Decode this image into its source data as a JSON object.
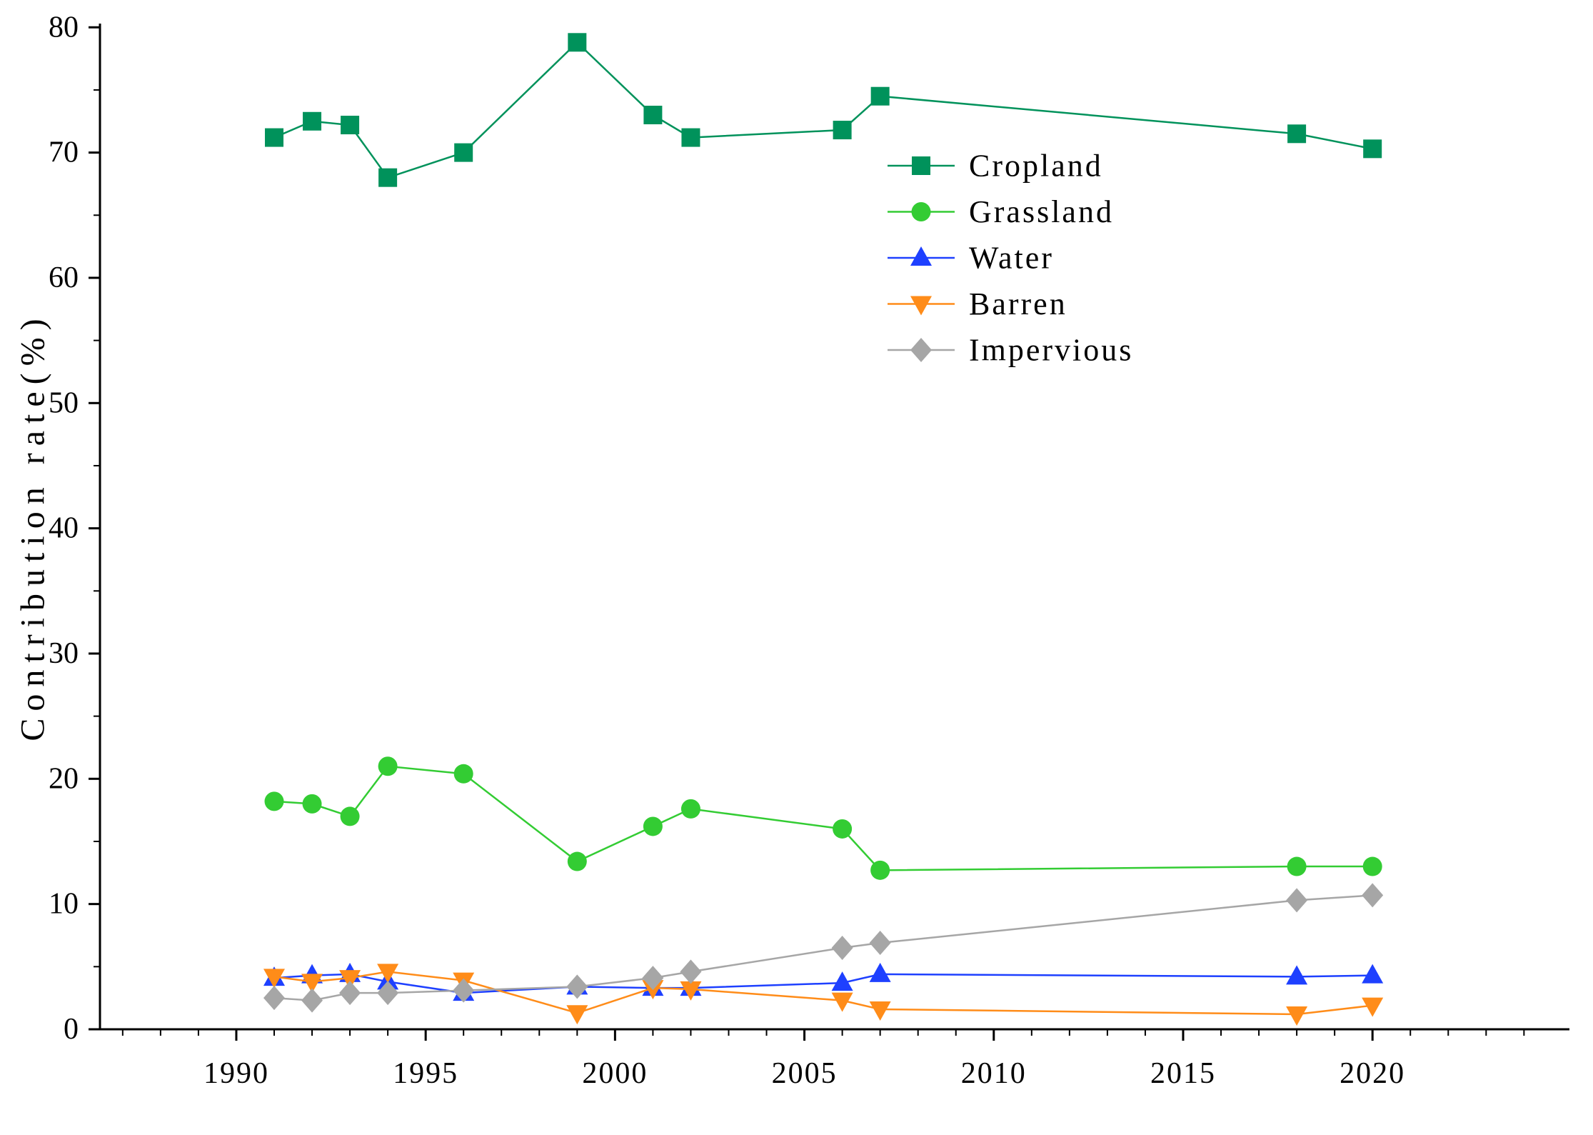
{
  "chart_data": {
    "type": "line",
    "title": "",
    "xlabel": "",
    "ylabel": "Contribution rate(%)",
    "x": [
      1991,
      1992,
      1993,
      1994,
      1996,
      1999,
      2001,
      2002,
      2006,
      2007,
      2018,
      2020
    ],
    "series": [
      {
        "name": "Cropland",
        "marker": "square",
        "color": "#00925B",
        "values": [
          71.2,
          72.5,
          72.2,
          68.0,
          70.0,
          78.8,
          73.0,
          71.2,
          71.8,
          74.5,
          71.5,
          70.3
        ]
      },
      {
        "name": "Grassland",
        "marker": "circle",
        "color": "#33CC33",
        "values": [
          18.2,
          18.0,
          17.0,
          21.0,
          20.4,
          13.4,
          16.2,
          17.6,
          16.0,
          12.7,
          13.0,
          13.0
        ]
      },
      {
        "name": "Water",
        "marker": "triangle-up",
        "color": "#1E40FF",
        "values": [
          4.1,
          4.3,
          4.4,
          3.8,
          2.9,
          3.4,
          3.3,
          3.3,
          3.7,
          4.4,
          4.2,
          4.3
        ]
      },
      {
        "name": "Barren",
        "marker": "triangle-down",
        "color": "#FF8C19",
        "values": [
          4.2,
          3.8,
          4.1,
          4.6,
          3.9,
          1.3,
          3.3,
          3.2,
          2.3,
          1.6,
          1.2,
          1.9
        ]
      },
      {
        "name": "Impervious",
        "marker": "diamond",
        "color": "#A6A6A6",
        "values": [
          2.5,
          2.3,
          2.9,
          2.9,
          3.1,
          3.4,
          4.1,
          4.6,
          6.5,
          6.9,
          10.3,
          10.7
        ]
      }
    ],
    "x_ticks": [
      1990,
      1995,
      2000,
      2005,
      2010,
      2015,
      2020
    ],
    "y_ticks": [
      0,
      10,
      20,
      30,
      40,
      50,
      60,
      70,
      80
    ],
    "x_range": [
      1986.4,
      2025.2
    ],
    "y_range": [
      0,
      80.3
    ],
    "legend": {
      "position": "upper-right",
      "labels": [
        "Cropland",
        "Grassland",
        "Water",
        "Barren",
        "Impervious"
      ]
    },
    "grid": false,
    "axis_color": "#000000",
    "text_color": "#000000",
    "background_color": "#ffffff"
  }
}
